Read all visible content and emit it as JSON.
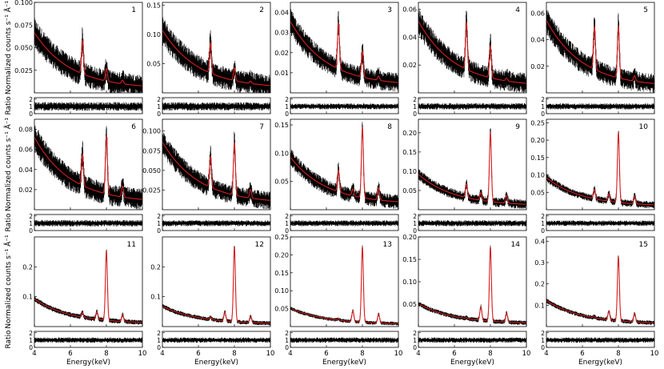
{
  "figure": {
    "ylabel_main": "Normalized counts s⁻¹ Å⁻¹",
    "ylabel_ratio": "Ratio",
    "xlabel": "Energy(keV)",
    "x_ticks": [
      "4",
      "6",
      "8",
      "10"
    ],
    "ratio_ticks": [
      "2",
      "1",
      "0"
    ]
  },
  "chart_data": [
    {
      "type": "line",
      "panel": "1",
      "xlim": [
        4,
        10
      ],
      "ylim": [
        0,
        0.1
      ],
      "y_ticks": [
        "0.025",
        "0.050",
        "0.075",
        "0.100"
      ],
      "continuum": [
        0.062,
        0.0047
      ],
      "peaks": [
        {
          "x": 6.67,
          "h": 0.037
        },
        {
          "x": 8.0,
          "h": 0.014
        },
        {
          "x": 8.9,
          "h": 0.004
        }
      ],
      "noise": 0.012,
      "ratio_range": [
        0,
        2.2
      ]
    },
    {
      "type": "line",
      "panel": "2",
      "xlim": [
        4,
        10
      ],
      "ylim": [
        0,
        0.155
      ],
      "y_ticks": [
        "0.05",
        "0.10",
        "0.15"
      ],
      "continuum": [
        0.1,
        0.0075
      ],
      "peaks": [
        {
          "x": 6.67,
          "h": 0.052
        },
        {
          "x": 8.0,
          "h": 0.022
        },
        {
          "x": 8.9,
          "h": 0.004
        }
      ],
      "noise": 0.018,
      "ratio_range": [
        0,
        2.2
      ]
    },
    {
      "type": "line",
      "panel": "3",
      "xlim": [
        4,
        10
      ],
      "ylim": [
        0,
        0.045
      ],
      "y_ticks": [
        "0.01",
        "0.02",
        "0.03",
        "0.04"
      ],
      "continuum": [
        0.032,
        0.0035
      ],
      "peaks": [
        {
          "x": 6.67,
          "h": 0.023
        },
        {
          "x": 8.0,
          "h": 0.013
        },
        {
          "x": 8.9,
          "h": 0.002
        }
      ],
      "noise": 0.0045,
      "ratio_range": [
        0,
        2.2
      ]
    },
    {
      "type": "line",
      "panel": "4",
      "xlim": [
        4,
        10
      ],
      "ylim": [
        0,
        0.065
      ],
      "y_ticks": [
        "0.02",
        "0.04",
        "0.06"
      ],
      "continuum": [
        0.047,
        0.0045
      ],
      "peaks": [
        {
          "x": 6.67,
          "h": 0.034
        },
        {
          "x": 8.0,
          "h": 0.023
        },
        {
          "x": 8.9,
          "h": 0.002
        }
      ],
      "noise": 0.007,
      "ratio_range": [
        0,
        2.2
      ]
    },
    {
      "type": "line",
      "panel": "5",
      "xlim": [
        4,
        10
      ],
      "ylim": [
        0,
        0.068
      ],
      "y_ticks": [
        "0.02",
        "0.04",
        "0.06"
      ],
      "continuum": [
        0.05,
        0.0045
      ],
      "peaks": [
        {
          "x": 6.67,
          "h": 0.032
        },
        {
          "x": 8.0,
          "h": 0.039
        },
        {
          "x": 8.9,
          "h": 0.004
        }
      ],
      "noise": 0.007,
      "ratio_range": [
        0,
        2.2
      ]
    },
    {
      "type": "line",
      "panel": "6",
      "xlim": [
        4,
        10
      ],
      "ylim": [
        0,
        0.09
      ],
      "y_ticks": [
        "0.02",
        "0.04",
        "0.06",
        "0.08"
      ],
      "continuum": [
        0.065,
        0.007
      ],
      "peaks": [
        {
          "x": 6.67,
          "h": 0.031
        },
        {
          "x": 8.0,
          "h": 0.058
        },
        {
          "x": 8.9,
          "h": 0.011
        }
      ],
      "noise": 0.01,
      "ratio_range": [
        0,
        2.2
      ]
    },
    {
      "type": "line",
      "panel": "7",
      "xlim": [
        4,
        10
      ],
      "ylim": [
        0,
        0.115
      ],
      "y_ticks": [
        "0.025",
        "0.050",
        "0.075",
        "0.100"
      ],
      "continuum": [
        0.078,
        0.008
      ],
      "peaks": [
        {
          "x": 6.67,
          "h": 0.039
        },
        {
          "x": 8.0,
          "h": 0.067
        },
        {
          "x": 8.9,
          "h": 0.011
        }
      ],
      "noise": 0.011,
      "ratio_range": [
        0,
        2.2
      ]
    },
    {
      "type": "line",
      "panel": "8",
      "xlim": [
        4,
        10
      ],
      "ylim": [
        0,
        0.16
      ],
      "y_ticks": [
        "0.05",
        "0.10",
        "0.15"
      ],
      "continuum": [
        0.083,
        0.01
      ],
      "peaks": [
        {
          "x": 6.67,
          "h": 0.038
        },
        {
          "x": 7.47,
          "h": 0.012
        },
        {
          "x": 8.0,
          "h": 0.125
        },
        {
          "x": 8.9,
          "h": 0.022
        }
      ],
      "noise": 0.012,
      "ratio_range": [
        0,
        2.2
      ]
    },
    {
      "type": "line",
      "panel": "9",
      "xlim": [
        4,
        10
      ],
      "ylim": [
        0,
        0.235
      ],
      "y_ticks": [
        "0.05",
        "0.10",
        "0.15",
        "0.20"
      ],
      "continuum": [
        0.082,
        0.01
      ],
      "peaks": [
        {
          "x": 6.67,
          "h": 0.035
        },
        {
          "x": 7.47,
          "h": 0.02
        },
        {
          "x": 8.0,
          "h": 0.18
        },
        {
          "x": 8.9,
          "h": 0.02
        }
      ],
      "noise": 0.012,
      "ratio_range": [
        0,
        2.2
      ]
    },
    {
      "type": "line",
      "panel": "10",
      "xlim": [
        4,
        10
      ],
      "ylim": [
        0,
        0.26
      ],
      "y_ticks": [
        "0.05",
        "0.10",
        "0.15",
        "0.20",
        "0.25"
      ],
      "continuum": [
        0.082,
        0.01
      ],
      "peaks": [
        {
          "x": 6.67,
          "h": 0.027
        },
        {
          "x": 7.47,
          "h": 0.021
        },
        {
          "x": 8.0,
          "h": 0.2
        },
        {
          "x": 8.9,
          "h": 0.022
        }
      ],
      "noise": 0.01,
      "ratio_range": [
        0,
        2.2
      ]
    },
    {
      "type": "line",
      "panel": "11",
      "xlim": [
        4,
        10
      ],
      "ylim": [
        0,
        0.3
      ],
      "y_ticks": [
        "0.1",
        "0.2"
      ],
      "continuum": [
        0.082,
        0.01
      ],
      "peaks": [
        {
          "x": 6.67,
          "h": 0.015
        },
        {
          "x": 7.47,
          "h": 0.025
        },
        {
          "x": 8.0,
          "h": 0.232
        },
        {
          "x": 8.9,
          "h": 0.023
        }
      ],
      "noise": 0.008,
      "ratio_range": [
        0,
        2.2
      ]
    },
    {
      "type": "line",
      "panel": "12",
      "xlim": [
        4,
        10
      ],
      "ylim": [
        0,
        0.3
      ],
      "y_ticks": [
        "0.1",
        "0.2"
      ],
      "continuum": [
        0.06,
        0.008
      ],
      "peaks": [
        {
          "x": 6.67,
          "h": 0.008
        },
        {
          "x": 7.47,
          "h": 0.03
        },
        {
          "x": 8.0,
          "h": 0.25
        },
        {
          "x": 8.9,
          "h": 0.02
        }
      ],
      "noise": 0.007,
      "ratio_range": [
        0,
        2.2
      ]
    },
    {
      "type": "line",
      "panel": "13",
      "xlim": [
        4,
        10
      ],
      "ylim": [
        0,
        0.25
      ],
      "y_ticks": [
        "0.05",
        "0.10",
        "0.15",
        "0.20",
        "0.25"
      ],
      "continuum": [
        0.045,
        0.006
      ],
      "peaks": [
        {
          "x": 6.67,
          "h": 0.004
        },
        {
          "x": 7.47,
          "h": 0.03
        },
        {
          "x": 8.0,
          "h": 0.21
        },
        {
          "x": 8.9,
          "h": 0.025
        }
      ],
      "noise": 0.005,
      "ratio_range": [
        0,
        2.2
      ]
    },
    {
      "type": "line",
      "panel": "14",
      "xlim": [
        4,
        10
      ],
      "ylim": [
        0,
        0.2
      ],
      "y_ticks": [
        "0.05",
        "0.10",
        "0.15",
        "0.20"
      ],
      "continuum": [
        0.045,
        0.006
      ],
      "peaks": [
        {
          "x": 6.67,
          "h": 0.002
        },
        {
          "x": 7.47,
          "h": 0.03
        },
        {
          "x": 8.0,
          "h": 0.165
        },
        {
          "x": 8.9,
          "h": 0.02
        }
      ],
      "noise": 0.005,
      "ratio_range": [
        0,
        2.2
      ]
    },
    {
      "type": "line",
      "panel": "15",
      "xlim": [
        4,
        10
      ],
      "ylim": [
        0,
        0.42
      ],
      "y_ticks": [
        "0.1",
        "0.2",
        "0.3",
        "0.4"
      ],
      "continuum": [
        0.11,
        0.012
      ],
      "peaks": [
        {
          "x": 6.67,
          "h": 0.005
        },
        {
          "x": 7.47,
          "h": 0.04
        },
        {
          "x": 8.0,
          "h": 0.3
        },
        {
          "x": 8.9,
          "h": 0.04
        }
      ],
      "noise": 0.01,
      "ratio_range": [
        0,
        2.2
      ]
    }
  ]
}
